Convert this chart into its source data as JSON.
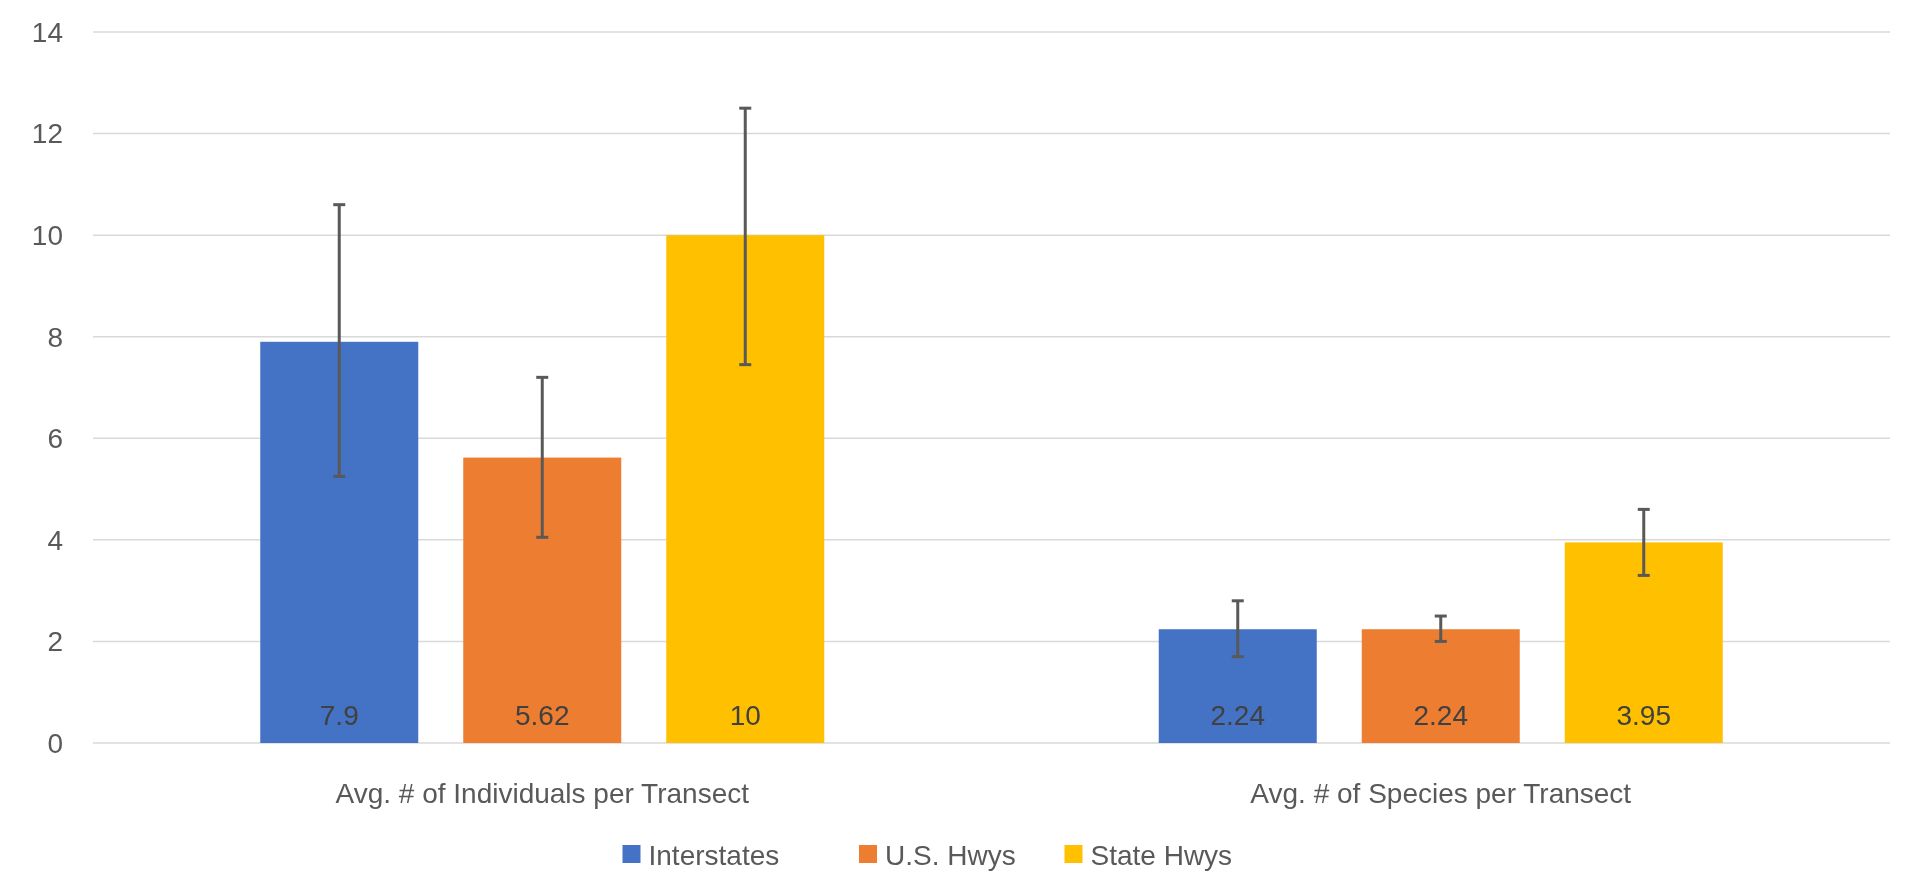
{
  "chart_data": {
    "type": "bar",
    "categories": [
      "Avg. # of Individuals per Transect",
      "Avg. # of Species per Transect"
    ],
    "series": [
      {
        "name": "Interstates",
        "color": "#4472c4",
        "values": [
          7.9,
          2.24
        ],
        "errors": [
          [
            5.25,
            10.6
          ],
          [
            1.7,
            2.8
          ]
        ]
      },
      {
        "name": "U.S. Hwys",
        "color": "#ed7d31",
        "values": [
          5.62,
          2.24
        ],
        "errors": [
          [
            4.05,
            7.2
          ],
          [
            2.0,
            2.5
          ]
        ]
      },
      {
        "name": "State Hwys",
        "color": "#ffc000",
        "values": [
          10,
          3.95
        ],
        "errors": [
          [
            7.45,
            12.5
          ],
          [
            3.3,
            4.6
          ]
        ]
      }
    ],
    "ylim": [
      0,
      14
    ],
    "yticks": [
      0,
      2,
      4,
      6,
      8,
      10,
      12,
      14
    ],
    "grid": "y",
    "legend": "bottom",
    "data_labels": true
  }
}
